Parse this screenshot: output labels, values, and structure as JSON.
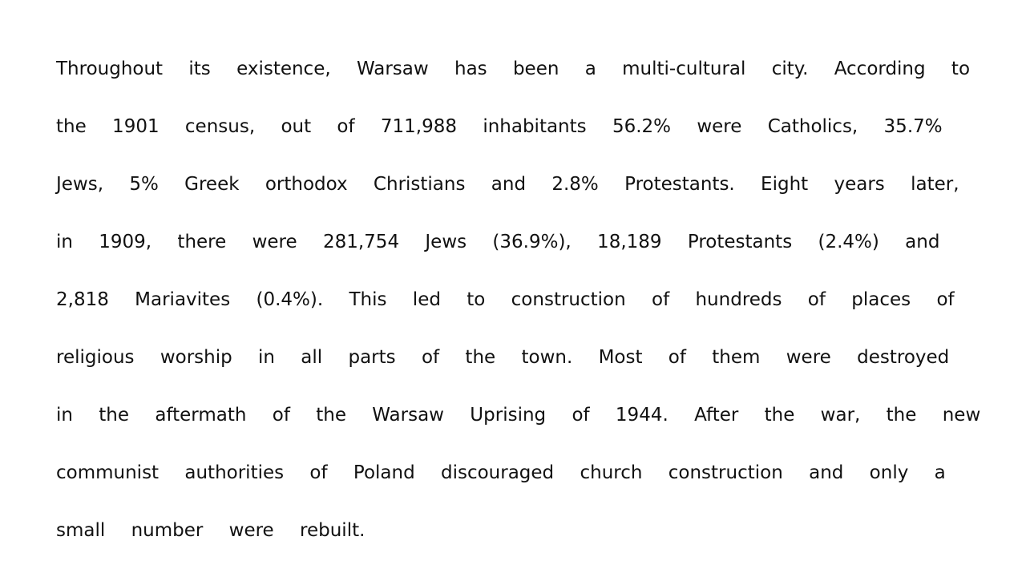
{
  "document": {
    "lines": [
      "Throughout its existence, Warsaw has been a multi-cultural city. According to",
      "the 1901 census, out of 711,988 inhabitants 56.2% were Catholics, 35.7%",
      "Jews, 5% Greek orthodox Christians and 2.8% Protestants. Eight years later,",
      "in 1909, there were 281,754 Jews (36.9%), 18,189 Protestants (2.4%) and",
      "2,818 Mariavites (0.4%). This led to construction of hundreds of places of",
      "religious worship in all parts of the town. Most of them were destroyed",
      "in the aftermath of the Warsaw Uprising of 1944. After the war, the new",
      "communist authorities of Poland discouraged church construction and only a",
      "small number were rebuilt."
    ]
  }
}
